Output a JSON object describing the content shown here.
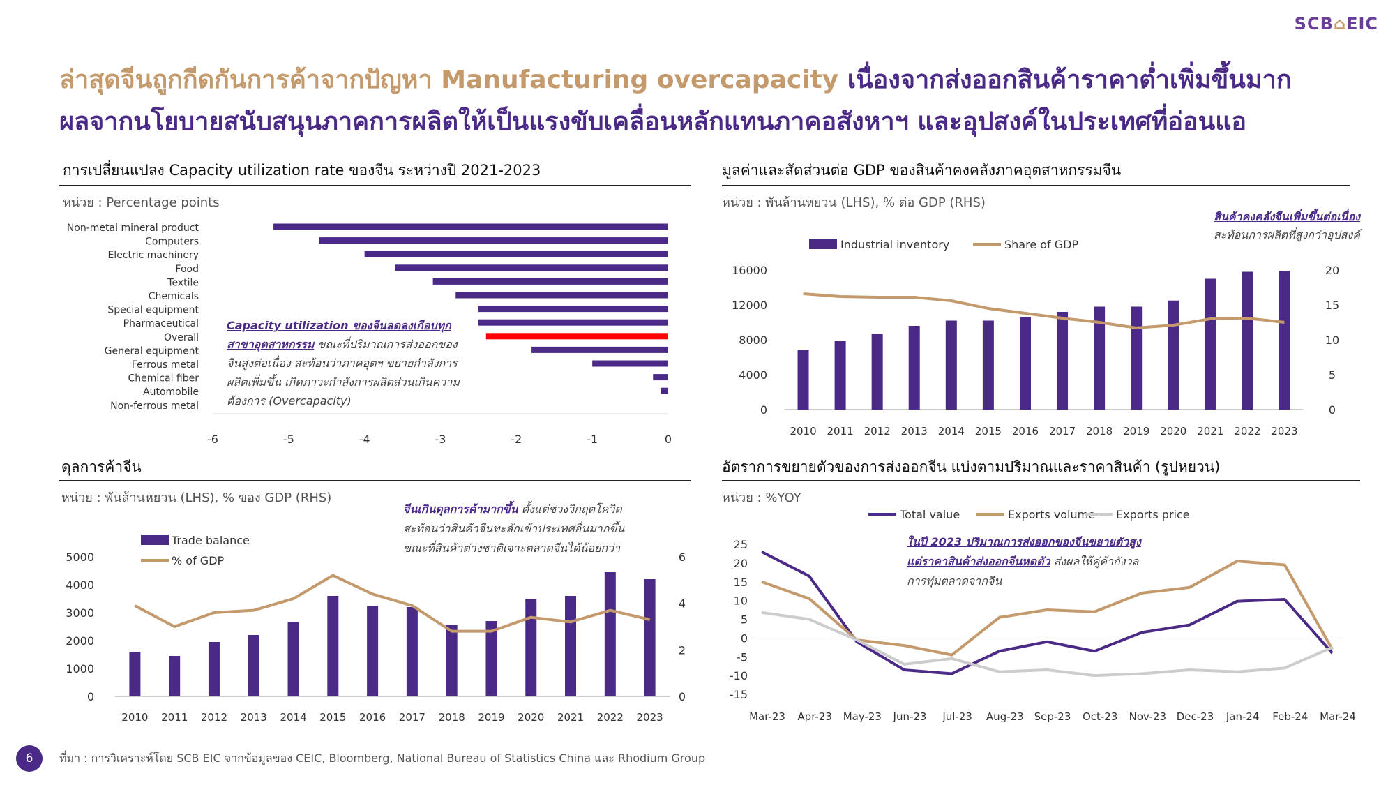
{
  "logo": {
    "left": "SCB",
    "right": "EIC"
  },
  "title": {
    "line1_part1": "ล่าสุดจีนถูกกีดกันการค้าจากปัญหา Manufacturing overcapacity",
    "line1_part2": "เนื่องจากส่งออกสินค้าราคาต่ำเพิ่มขึ้นมาก",
    "line2": "ผลจากนโยบายสนับสนุนภาคการผลิตให้เป็นแรงขับเคลื่อนหลักแทนภาคอสังหาฯ และอุปสงค์ในประเทศที่อ่อนแอ"
  },
  "panels": {
    "p1": {
      "title": "การเปลี่ยนแปลง Capacity utilization rate ของจีน ระหว่างปี 2021-2023",
      "unit": "หน่วย : Percentage points",
      "annotation_u": "Capacity utilization ของจีนลดลงเกือบทุกสาขาอุตสาหกรรม",
      "annotation_rest": " ขณะที่ปริมาณการส่งออกของจีนสูงต่อเนื่อง สะท้อนว่าภาคอุตฯ ขยายกำลังการผลิตเพิ่มขึ้น เกิดภาวะกำลังการผลิตส่วนเกินความต้องการ (Overcapacity)"
    },
    "p2": {
      "title": "มูลค่าและสัดส่วนต่อ GDP ของสินค้าคงคลังภาคอุตสาหกรรมจีน",
      "unit": "หน่วย : พันล้านหยวน (LHS), % ต่อ GDP (RHS)",
      "annotation_u": "สินค้าคงคลังจีนเพิ่มขึ้นต่อเนื่อง",
      "annotation_rest": "สะท้อนการผลิตที่สูงกว่าอุปสงค์"
    },
    "p3": {
      "title": "ดุลการค้าจีน",
      "unit": "หน่วย : พันล้านหยวน (LHS), % ของ GDP (RHS)",
      "annotation_u": "จีนเกินดุลการค้ามากขึ้น",
      "annotation_rest": " ตั้งแต่ช่วงวิกฤตโควิด สะท้อนว่าสินค้าจีนทะลักเข้าประเทศอื่นมากขึ้น ขณะที่สินค้าต่างชาติเจาะตลาดจีนได้น้อยกว่า"
    },
    "p4": {
      "title": "อัตราการขยายตัวของการส่งออกจีน แบ่งตามปริมาณและราคาสินค้า (รูปหยวน)",
      "unit": "หน่วย : %YOY",
      "annotation_u": "ในปี 2023 ปริมาณการส่งออกของจีนขยายตัวสูงแต่ราคาสินค้าส่งออกจีนหดตัว",
      "annotation_rest": " ส่งผลให้คู่ค้ากังวลการทุ่มตลาดจากจีน"
    }
  },
  "footer": "ที่มา : การวิเคราะห์โดย SCB EIC จากข้อมูลของ CEIC, Bloomberg, National Bureau of Statistics China และ Rhodium Group",
  "page_number": "6",
  "colors": {
    "purple": "#4b2a87",
    "tan": "#c49a6c",
    "red": "#ff0000",
    "grey": "#cccccc",
    "axis": "#999999"
  },
  "chart_data": [
    {
      "type": "bar",
      "orientation": "horizontal",
      "categories": [
        "Non-metal mineral product",
        "Computers",
        "Electric machinery",
        "Food",
        "Textile",
        "Chemicals",
        "Special equipment",
        "Pharmaceutical",
        "Overall",
        "General equipment",
        "Ferrous metal",
        "Chemical fiber",
        "Automobile",
        "Non-ferrous metal"
      ],
      "values": [
        -5.2,
        -4.6,
        -4.0,
        -3.6,
        -3.1,
        -2.8,
        -2.5,
        -2.5,
        -2.4,
        -1.8,
        -1.0,
        -0.2,
        -0.1,
        0.0
      ],
      "highlight": "Overall",
      "xlim": [
        -6,
        0
      ],
      "xticks": [
        "-6",
        "-5",
        "-4",
        "-3",
        "-2",
        "-1",
        "0"
      ]
    },
    {
      "type": "bar",
      "categories": [
        "2010",
        "2011",
        "2012",
        "2013",
        "2014",
        "2015",
        "2016",
        "2017",
        "2018",
        "2019",
        "2020",
        "2021",
        "2022",
        "2023"
      ],
      "series": [
        {
          "name": "Industrial inventory",
          "axis": "left",
          "values": [
            6800,
            7900,
            8700,
            9600,
            10200,
            10200,
            10600,
            11200,
            11800,
            11800,
            12500,
            15000,
            15800,
            15900
          ]
        },
        {
          "name": "Share of GDP",
          "axis": "right",
          "kind": "line",
          "values": [
            16.6,
            16.2,
            16.1,
            16.1,
            15.6,
            14.5,
            13.8,
            13.1,
            12.5,
            11.7,
            12.1,
            13.0,
            13.1,
            12.5
          ]
        }
      ],
      "ylim_left": [
        0,
        16000
      ],
      "yticks_left": [
        "0",
        "4000",
        "8000",
        "12000",
        "16000"
      ],
      "ylim_right": [
        0,
        20
      ],
      "yticks_right": [
        "0",
        "5",
        "10",
        "15",
        "20"
      ],
      "legend": "top-left"
    },
    {
      "type": "bar",
      "categories": [
        "2010",
        "2011",
        "2012",
        "2013",
        "2014",
        "2015",
        "2016",
        "2017",
        "2018",
        "2019",
        "2020",
        "2021",
        "2022",
        "2023"
      ],
      "series": [
        {
          "name": "Trade balance",
          "axis": "left",
          "values": [
            1600,
            1450,
            1950,
            2200,
            2650,
            3600,
            3250,
            3200,
            2550,
            2700,
            3500,
            3600,
            4450,
            4200
          ]
        },
        {
          "name": "% of GDP",
          "axis": "right",
          "kind": "line",
          "values": [
            3.9,
            3.0,
            3.6,
            3.7,
            4.2,
            5.2,
            4.4,
            3.9,
            2.8,
            2.8,
            3.4,
            3.2,
            3.7,
            3.3
          ]
        }
      ],
      "ylim_left": [
        0,
        5000
      ],
      "yticks_left": [
        "0",
        "1000",
        "2000",
        "3000",
        "4000",
        "5000"
      ],
      "ylim_right": [
        0,
        6
      ],
      "yticks_right": [
        "0",
        "2",
        "4",
        "6"
      ],
      "legend": "top-left"
    },
    {
      "type": "line",
      "x": [
        "Mar-23",
        "Apr-23",
        "May-23",
        "Jun-23",
        "Jul-23",
        "Aug-23",
        "Sep-23",
        "Oct-23",
        "Nov-23",
        "Dec-23",
        "Jan-24",
        "Feb-24",
        "Mar-24"
      ],
      "series": [
        {
          "name": "Total value",
          "values": [
            23.0,
            16.5,
            -1.0,
            -8.5,
            -9.5,
            -3.5,
            -1.0,
            -3.5,
            1.5,
            3.5,
            9.8,
            10.3,
            -4.0
          ]
        },
        {
          "name": "Exports volume",
          "values": [
            15.0,
            10.5,
            -0.5,
            -2.0,
            -4.5,
            5.5,
            7.5,
            7.0,
            12.0,
            13.5,
            20.5,
            19.5,
            -3.0
          ]
        },
        {
          "name": "Exports price",
          "values": [
            6.8,
            5.0,
            -0.5,
            -7.0,
            -5.5,
            -9.0,
            -8.5,
            -10.0,
            -9.5,
            -8.5,
            -9.0,
            -8.0,
            -2.5
          ]
        }
      ],
      "ylim": [
        -15,
        25
      ],
      "yticks": [
        "25",
        "20",
        "15",
        "10",
        "5",
        "0",
        "-5",
        "-10",
        "-15"
      ],
      "legend": "top"
    }
  ]
}
